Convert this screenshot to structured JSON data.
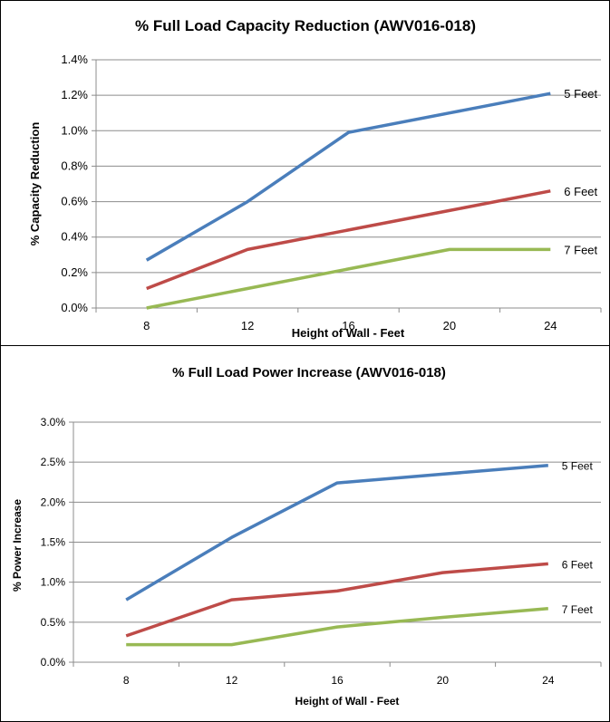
{
  "chart_data": [
    {
      "type": "line",
      "title": "% Full Load Capacity Reduction (AWV016-018)",
      "xlabel": "Height of Wall - Feet",
      "ylabel": "% Capacity Reduction",
      "categories": [
        "8",
        "12",
        "16",
        "20",
        "24"
      ],
      "yticks": [
        "0.0%",
        "0.2%",
        "0.4%",
        "0.6%",
        "0.8%",
        "1.0%",
        "1.2%",
        "1.4%"
      ],
      "ylim": [
        0,
        1.4
      ],
      "grid": true,
      "legend": "line-end labels",
      "series": [
        {
          "name": "5 Feet",
          "color": "#4a7ebb",
          "values": [
            0.27,
            0.6,
            0.99,
            1.1,
            1.21
          ]
        },
        {
          "name": "6 Feet",
          "color": "#be4b48",
          "values": [
            0.11,
            0.33,
            0.44,
            0.55,
            0.66
          ]
        },
        {
          "name": "7 Feet",
          "color": "#98b954",
          "values": [
            0.0,
            0.11,
            0.22,
            0.33,
            0.33
          ]
        }
      ]
    },
    {
      "type": "line",
      "title": "% Full Load Power Increase (AWV016-018)",
      "xlabel": "Height of Wall - Feet",
      "ylabel": "% Power Increase",
      "categories": [
        "8",
        "12",
        "16",
        "20",
        "24"
      ],
      "yticks": [
        "0.0%",
        "0.5%",
        "1.0%",
        "1.5%",
        "2.0%",
        "2.5%",
        "3.0%"
      ],
      "ylim": [
        0,
        3.0
      ],
      "grid": true,
      "legend": "line-end labels",
      "series": [
        {
          "name": "5 Feet",
          "color": "#4a7ebb",
          "values": [
            0.78,
            1.56,
            2.24,
            2.35,
            2.46
          ]
        },
        {
          "name": "6 Feet",
          "color": "#be4b48",
          "values": [
            0.33,
            0.78,
            0.89,
            1.12,
            1.23
          ]
        },
        {
          "name": "7 Feet",
          "color": "#98b954",
          "values": [
            0.22,
            0.22,
            0.44,
            0.56,
            0.67
          ]
        }
      ]
    }
  ]
}
